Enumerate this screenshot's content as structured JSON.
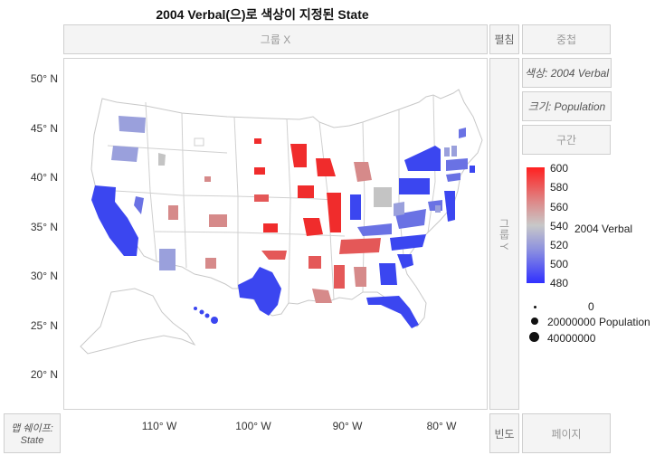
{
  "title": "2004 Verbal(으)로 색상이 지정된 State",
  "zones": {
    "group_x": "그룹 X",
    "wrap": "펼침",
    "overlay": "중첩",
    "color": "색상: 2004 Verbal",
    "size": "크기: Population",
    "interval": "구간",
    "group_y": "그룹 Y",
    "map_shape": "맵 쉐이프:\nState",
    "freq": "빈도",
    "page": "페이지"
  },
  "axes": {
    "y_ticks": [
      "50° N",
      "45° N",
      "40° N",
      "35° N",
      "30° N",
      "25° N",
      "20° N"
    ],
    "x_ticks": [
      "110° W",
      "100° W",
      "90° W",
      "80° W"
    ]
  },
  "color_legend": {
    "title": "2004 Verbal",
    "ticks": [
      "600",
      "580",
      "560",
      "540",
      "520",
      "500",
      "480"
    ],
    "colors": [
      "#ff2020",
      "#dd8a8a",
      "#c8c8c8",
      "#8a8ee0",
      "#3030ff"
    ]
  },
  "size_legend": {
    "title": "Population",
    "items": [
      "0",
      "20000000",
      "40000000"
    ]
  },
  "state_colors": {
    "blue": "#3b46f0",
    "mid_blue": "#6a72e4",
    "light_blue": "#9aa0dc",
    "gray": "#c4c4c4",
    "light_red": "#d68a8a",
    "mid_red": "#e45858",
    "red": "#f02c2c"
  }
}
